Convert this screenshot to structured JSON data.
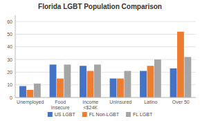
{
  "chart_data": {
    "type": "bar",
    "title": "Florida LGBT Population Comparison",
    "categories": [
      "Unemployed",
      "Food Insecure",
      "Income <$24K",
      "Uninsured",
      "Latino",
      "Over 50"
    ],
    "series": [
      {
        "name": "US LGBT",
        "color": "#4472C4",
        "values": [
          9,
          26,
          25,
          15,
          21,
          23
        ]
      },
      {
        "name": "FL Non-LGBT",
        "color": "#ED7D31",
        "values": [
          6,
          15,
          21,
          15,
          25,
          52
        ]
      },
      {
        "name": "FL LGBT",
        "color": "#A5A5A5",
        "values": [
          11,
          26,
          26,
          21,
          30,
          32
        ]
      }
    ],
    "ylim": [
      0,
      65
    ],
    "yticks": [
      0,
      10,
      20,
      30,
      40,
      50,
      60
    ],
    "grid": true,
    "legend": "bottom"
  }
}
